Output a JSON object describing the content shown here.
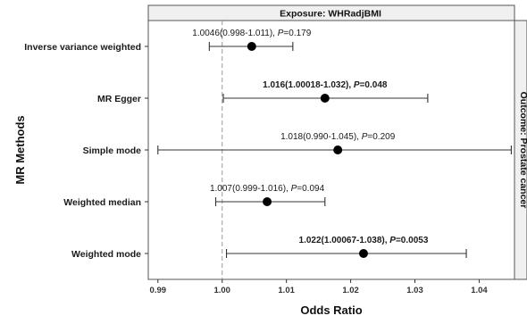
{
  "chart_data": {
    "type": "forest",
    "panel_title": "Exposure: WHRadjBMI",
    "strip_label": "Outcome: Prostate cancer",
    "xlabel": "Odds Ratio",
    "ylabel": "MR Methods",
    "xlim": [
      0.9885,
      1.0455
    ],
    "x_ticks": [
      0.99,
      1.0,
      1.01,
      1.02,
      1.03,
      1.04
    ],
    "x_tick_labels": [
      "0.99",
      "1.00",
      "1.01",
      "1.02",
      "1.03",
      "1.04"
    ],
    "reference_line": 1.0,
    "grid": false,
    "rows": [
      {
        "method": "Inverse variance weighted",
        "or": 1.0046,
        "lo": 0.998,
        "hi": 1.011,
        "label_main": "1.0046(0.998-1.011), ",
        "label_p": "P",
        "label_tail": "=0.179",
        "bold": false
      },
      {
        "method": "MR Egger",
        "or": 1.016,
        "lo": 1.00018,
        "hi": 1.032,
        "label_main": "1.016(1.00018-1.032), ",
        "label_p": "P",
        "label_tail": "=0.048",
        "bold": true
      },
      {
        "method": "Simple mode",
        "or": 1.018,
        "lo": 0.99,
        "hi": 1.045,
        "label_main": "1.018(0.990-1.045), ",
        "label_p": "P",
        "label_tail": "=0.209",
        "bold": false
      },
      {
        "method": "Weighted median",
        "or": 1.007,
        "lo": 0.999,
        "hi": 1.016,
        "label_main": "1.007(0.999-1.016), ",
        "label_p": "P",
        "label_tail": "=0.094",
        "bold": false
      },
      {
        "method": "Weighted mode",
        "or": 1.022,
        "lo": 1.00067,
        "hi": 1.038,
        "label_main": "1.022(1.00067-1.038), ",
        "label_p": "P",
        "label_tail": "=0.0053",
        "bold": true
      }
    ],
    "colors": {
      "point": "#000000",
      "ci_line": "#333333",
      "reference": "#9a9a9a",
      "panel_border": "#555555",
      "strip_fill": "#f0f0f0",
      "text": "#1a1a1a"
    }
  }
}
